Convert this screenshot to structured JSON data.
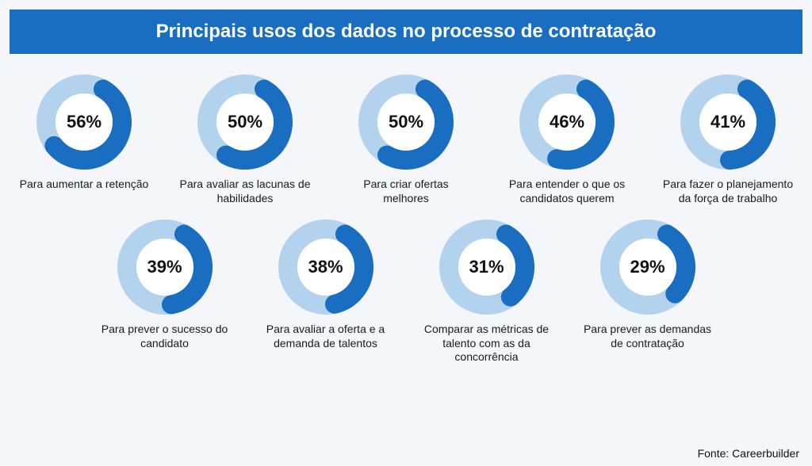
{
  "title": "Principais usos dos dados no processo de contratação",
  "source": "Fonte: Careerbuilder",
  "style": {
    "title_bg": "#1a6ec1",
    "title_color": "#ffffff",
    "page_bg": "#f5f6fa",
    "donut_track": "#b2d2ee",
    "donut_fill": "#1a6ec1",
    "donut_inner": "#ffffff",
    "pct_color": "#111111",
    "label_color": "#1a1a1a",
    "donut_size": 120,
    "donut_thickness": 24,
    "start_angle_deg": 30,
    "sweep_direction": "clockwise",
    "title_fontsize": 24,
    "pct_fontsize": 22,
    "label_fontsize": 14
  },
  "rows": [
    [
      {
        "pct": 56,
        "label": "Para aumentar a retenção"
      },
      {
        "pct": 50,
        "label": "Para avaliar as lacunas de habilidades"
      },
      {
        "pct": 50,
        "label": "Para criar ofertas melhores"
      },
      {
        "pct": 46,
        "label": "Para entender o que os candidatos querem"
      },
      {
        "pct": 41,
        "label": "Para fazer o planejamento da força de trabalho"
      }
    ],
    [
      {
        "pct": 39,
        "label": "Para prever o sucesso do candidato"
      },
      {
        "pct": 38,
        "label": "Para avaliar a oferta e a demanda de talentos"
      },
      {
        "pct": 31,
        "label": "Comparar as métricas de talento com as da concorrência"
      },
      {
        "pct": 29,
        "label": "Para prever as demandas de contratação"
      }
    ]
  ]
}
